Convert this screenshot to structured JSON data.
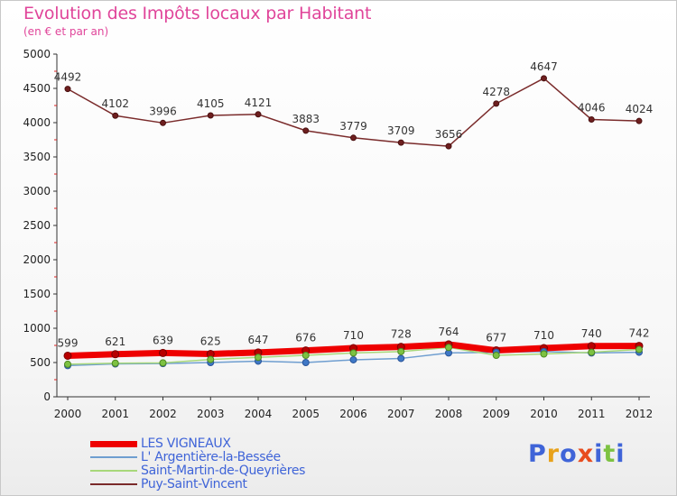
{
  "header": {
    "title": "Evolution des Impôts locaux par Habitant",
    "subtitle": "(en € et par an)"
  },
  "brand": {
    "text": "Proxiti",
    "colors": [
      "#3f64d8",
      "#e8a21b",
      "#3f64d8",
      "#e84c1e",
      "#3f64d8",
      "#7dc242",
      "#3f64d8"
    ]
  },
  "chart_data": {
    "type": "line",
    "x": [
      2000,
      2001,
      2002,
      2003,
      2004,
      2005,
      2006,
      2007,
      2008,
      2009,
      2010,
      2011,
      2012
    ],
    "ylim": [
      0,
      5000
    ],
    "yticks": [
      0,
      500,
      1000,
      1500,
      2000,
      2500,
      3000,
      3500,
      4000,
      4500,
      5000
    ],
    "grid": false,
    "legend_position": "bottom-left",
    "series": [
      {
        "name": "LES VIGNEAUX",
        "color": "#ee0000",
        "values": [
          599,
          621,
          639,
          625,
          647,
          676,
          710,
          728,
          764,
          677,
          710,
          740,
          742
        ],
        "labels": [
          "599",
          "621",
          "639",
          "625",
          "647",
          "676",
          "710",
          "728",
          "764",
          "677",
          "710",
          "740",
          "742"
        ]
      },
      {
        "name": "L' Argentière-la-Bessée",
        "color": "#6f9ed0",
        "marker": "#3f78c6",
        "values": [
          455,
          480,
          485,
          500,
          520,
          500,
          540,
          560,
          640,
          650,
          660,
          640,
          650
        ]
      },
      {
        "name": "Saint-Martin-de-Queyrières",
        "color": "#a8d87a",
        "marker": "#7dc242",
        "values": [
          475,
          490,
          495,
          545,
          575,
          605,
          640,
          660,
          720,
          605,
          625,
          650,
          690
        ]
      },
      {
        "name": "Puy-Saint-Vincent",
        "color": "#7a2b2b",
        "marker": "#6e1f1f",
        "values": [
          4492,
          4102,
          3996,
          4105,
          4121,
          3883,
          3779,
          3709,
          3656,
          4278,
          4647,
          4046,
          4024
        ],
        "labels": [
          "4492",
          "4102",
          "3996",
          "4105",
          "4121",
          "3883",
          "3779",
          "3709",
          "3656",
          "4278",
          "4647",
          "4046",
          "4024"
        ]
      }
    ]
  },
  "legend": {
    "items": [
      {
        "label": "LES VIGNEAUX",
        "color": "#ee0000",
        "thick": true
      },
      {
        "label": "L' Argentière-la-Bessée",
        "color": "#6f9ed0",
        "thick": false
      },
      {
        "label": "Saint-Martin-de-Queyrières",
        "color": "#a8d87a",
        "thick": false
      },
      {
        "label": "Puy-Saint-Vincent",
        "color": "#7a2b2b",
        "thick": false
      }
    ]
  }
}
